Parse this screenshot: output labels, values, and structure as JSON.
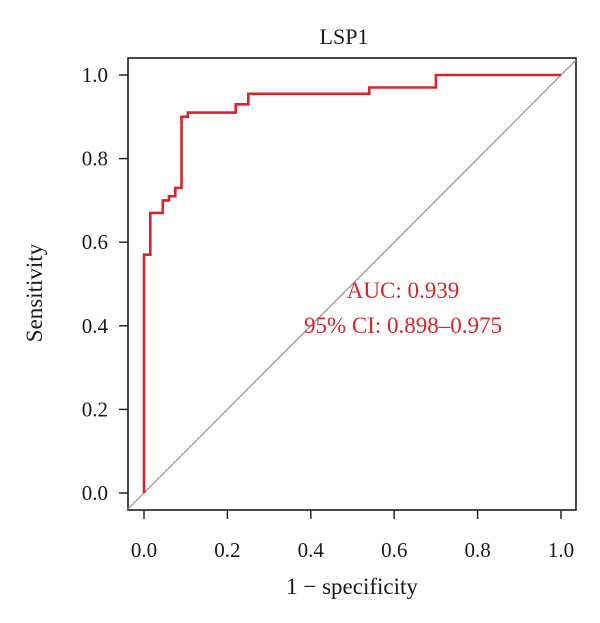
{
  "chart_data": {
    "type": "line",
    "title": "LSP1",
    "xlabel": "1 − specificity",
    "ylabel": "Sensitivity",
    "xlim": [
      0,
      1
    ],
    "ylim": [
      0,
      1
    ],
    "x_ticks": [
      "0.0",
      "0.2",
      "0.4",
      "0.6",
      "0.8",
      "1.0"
    ],
    "y_ticks": [
      "0.0",
      "0.2",
      "0.4",
      "0.6",
      "0.8",
      "1.0"
    ],
    "grid": false,
    "series": [
      {
        "color": "#d7262b",
        "x": [
          0,
          0,
          0.015,
          0.015,
          0.045,
          0.045,
          0.06,
          0.06,
          0.075,
          0.075,
          0.09,
          0.09,
          0.105,
          0.105,
          0.22,
          0.22,
          0.25,
          0.25,
          0.54,
          0.54,
          0.7,
          0.7,
          1.0
        ],
        "y": [
          0,
          0.57,
          0.57,
          0.67,
          0.67,
          0.7,
          0.7,
          0.71,
          0.71,
          0.73,
          0.73,
          0.9,
          0.9,
          0.91,
          0.91,
          0.93,
          0.93,
          0.955,
          0.955,
          0.97,
          0.97,
          1.0,
          1.0
        ]
      }
    ],
    "reference_line": {
      "x": [
        0,
        1
      ],
      "y": [
        0,
        1
      ],
      "color": "#9a9a9a"
    },
    "annotations": {
      "color": "#d7262b",
      "auc": "AUC: 0.939",
      "ci": "95% CI: 0.898–0.975"
    }
  }
}
